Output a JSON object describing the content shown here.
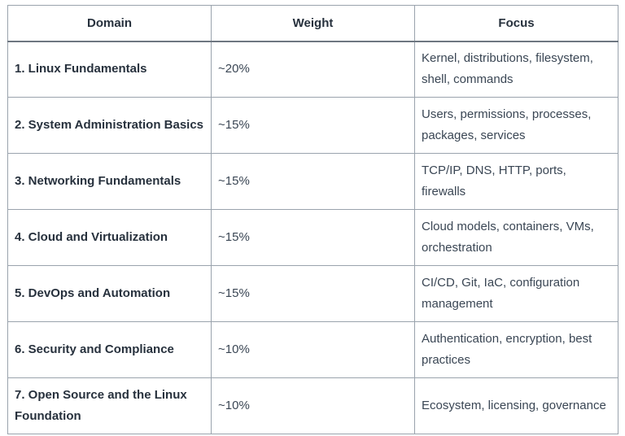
{
  "table": {
    "headers": {
      "domain": "Domain",
      "weight": "Weight",
      "focus": "Focus"
    },
    "rows": [
      {
        "domain": "1. Linux Fundamentals",
        "weight": "~20%",
        "focus": "Kernel, distributions, filesystem, shell, commands"
      },
      {
        "domain": "2. System Administration Basics",
        "weight": "~15%",
        "focus": "Users, permissions, processes, packages, services"
      },
      {
        "domain": "3. Networking Fundamentals",
        "weight": "~15%",
        "focus": "TCP/IP, DNS, HTTP, ports, firewalls"
      },
      {
        "domain": "4. Cloud and Virtualization",
        "weight": "~15%",
        "focus": "Cloud models, containers, VMs, orchestration"
      },
      {
        "domain": "5. DevOps and Automation",
        "weight": "~15%",
        "focus": "CI/CD, Git, IaC, configuration management"
      },
      {
        "domain": "6. Security and Compliance",
        "weight": "~10%",
        "focus": "Authentication, encryption, best practices"
      },
      {
        "domain": "7. Open Source and the Linux Foundation",
        "weight": "~10%",
        "focus": "Ecosystem, licensing, governance"
      }
    ]
  }
}
